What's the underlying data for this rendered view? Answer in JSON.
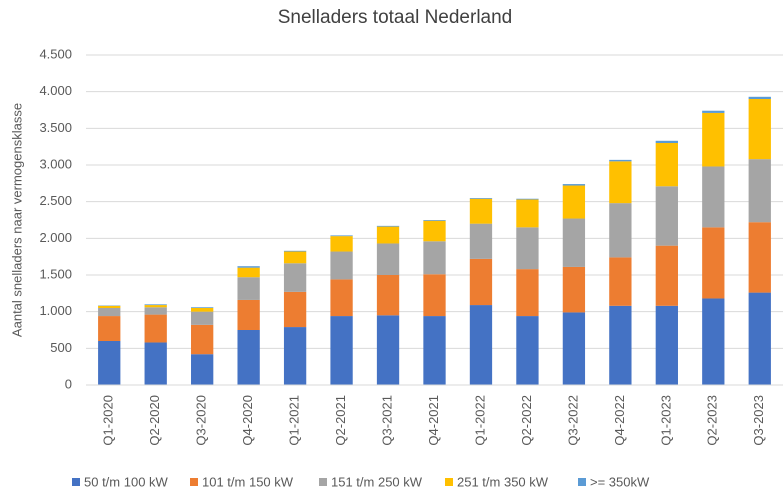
{
  "chart_data": {
    "type": "stacked_bar",
    "title": "Snelladers totaal Nederland",
    "y_label": "Aantal snelladers naar vermogensklasse",
    "categories": [
      "Q1-2020",
      "Q2-2020",
      "Q3-2020",
      "Q4-2020",
      "Q1-2021",
      "Q2-2021",
      "Q3-2021",
      "Q4-2021",
      "Q1-2022",
      "Q2-2022",
      "Q3-2022",
      "Q4-2022",
      "Q1-2023",
      "Q2-2023",
      "Q3-2023"
    ],
    "series": [
      {
        "name": "50 t/m 100 kW",
        "color": "#4472c4",
        "values": [
          600,
          580,
          420,
          750,
          790,
          940,
          950,
          940,
          1090,
          940,
          990,
          1080,
          1080,
          1180,
          1260
        ]
      },
      {
        "name": "101 t/m 150 kW",
        "color": "#ed7d31",
        "values": [
          340,
          380,
          400,
          410,
          480,
          500,
          550,
          570,
          630,
          640,
          620,
          660,
          820,
          970,
          960
        ]
      },
      {
        "name": "151 t/m 250 kW",
        "color": "#a5a5a5",
        "values": [
          110,
          100,
          180,
          310,
          390,
          380,
          430,
          450,
          480,
          570,
          660,
          740,
          810,
          830,
          860
        ]
      },
      {
        "name": "251 t/m 350 kW",
        "color": "#ffc000",
        "values": [
          30,
          30,
          50,
          130,
          160,
          210,
          230,
          280,
          340,
          380,
          450,
          570,
          590,
          730,
          820
        ]
      },
      {
        "name": ">= 350kW",
        "color": "#5b9bd5",
        "values": [
          5,
          10,
          10,
          20,
          10,
          10,
          10,
          10,
          10,
          10,
          20,
          20,
          30,
          30,
          30
        ]
      }
    ],
    "ylim": [
      0,
      4500
    ],
    "yticks": [
      0,
      500,
      {
        "value": 1000,
        "label": "1.000"
      },
      {
        "value": 1500,
        "label": "1.500"
      },
      {
        "value": 2000,
        "label": "2.000"
      },
      {
        "value": 2500,
        "label": "2.500"
      },
      {
        "value": 3000,
        "label": "3.000"
      },
      {
        "value": 3500,
        "label": "3.500"
      },
      {
        "value": 4000,
        "label": "4.000"
      },
      {
        "value": 4500,
        "label": "4.500"
      }
    ],
    "grid": true,
    "legend": "bottom"
  }
}
